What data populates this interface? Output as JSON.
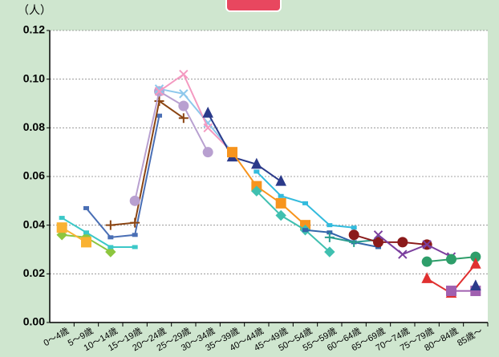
{
  "chart_data": {
    "type": "line",
    "y_label": "（人）",
    "categories": [
      "0～4歳",
      "5～9歳",
      "10～14歳",
      "15～19歳",
      "20～24歳",
      "25～29歳",
      "30～34歳",
      "35～39歳",
      "40～44歳",
      "45～49歳",
      "50～54歳",
      "55～59歳",
      "60～64歳",
      "65～69歳",
      "70～74歳",
      "75～79歳",
      "80～84歳",
      "85歳～"
    ],
    "ylim": [
      0,
      0.12
    ],
    "yticks": [
      {
        "value": 0,
        "label": "0.00"
      },
      {
        "value": 0.02,
        "label": "0.02"
      },
      {
        "value": 0.04,
        "label": "0.04"
      },
      {
        "value": 0.06,
        "label": "0.06"
      },
      {
        "value": 0.08,
        "label": "0.08"
      },
      {
        "value": 0.1,
        "label": "0.10"
      },
      {
        "value": 0.12,
        "label": "0.12"
      }
    ],
    "grid": true,
    "series": [
      {
        "color": "#8dc63f",
        "marker": "diamond",
        "values": [
          0.036,
          0.035,
          0.029,
          null,
          null,
          null,
          null,
          null,
          null,
          null,
          null,
          null,
          null,
          null,
          null,
          null,
          null,
          null
        ]
      },
      {
        "color": "#f9b233",
        "marker": "square",
        "values": [
          0.039,
          0.033,
          null,
          null,
          null,
          null,
          null,
          null,
          null,
          null,
          null,
          null,
          null,
          null,
          null,
          null,
          null,
          null
        ]
      },
      {
        "color": "#3cc8c8",
        "marker": "dash",
        "values": [
          0.043,
          0.037,
          0.031,
          0.031,
          null,
          null,
          null,
          null,
          null,
          null,
          null,
          null,
          null,
          null,
          null,
          null,
          null,
          null
        ]
      },
      {
        "color": "#4a6fb5",
        "marker": "dash",
        "values": [
          null,
          0.047,
          0.035,
          0.036,
          0.085,
          null,
          null,
          null,
          null,
          null,
          null,
          null,
          null,
          null,
          null,
          null,
          null,
          null
        ]
      },
      {
        "color": "#8b4513",
        "marker": "plus",
        "values": [
          null,
          null,
          0.04,
          0.041,
          0.091,
          0.084,
          null,
          null,
          null,
          null,
          null,
          null,
          null,
          null,
          null,
          null,
          null,
          null
        ]
      },
      {
        "color": "#b8a0d0",
        "marker": "circle",
        "values": [
          null,
          null,
          null,
          0.05,
          0.095,
          0.089,
          0.07,
          null,
          null,
          null,
          null,
          null,
          null,
          null,
          null,
          null,
          null,
          null
        ]
      },
      {
        "color": "#8ec8ec",
        "marker": "x",
        "values": [
          null,
          null,
          null,
          null,
          0.096,
          0.094,
          0.082,
          0.07,
          null,
          null,
          null,
          null,
          null,
          null,
          null,
          null,
          null,
          null
        ]
      },
      {
        "color": "#f49ac1",
        "marker": "x",
        "values": [
          null,
          null,
          null,
          null,
          0.095,
          0.102,
          0.08,
          0.07,
          null,
          null,
          null,
          null,
          null,
          null,
          null,
          null,
          null,
          null
        ]
      },
      {
        "color": "#2b3a8a",
        "marker": "triangle",
        "values": [
          null,
          null,
          null,
          null,
          null,
          null,
          0.086,
          0.068,
          0.065,
          0.058,
          null,
          null,
          null,
          null,
          null,
          null,
          null,
          null
        ]
      },
      {
        "color": "#f7941d",
        "marker": "square",
        "values": [
          null,
          null,
          null,
          null,
          null,
          null,
          null,
          0.07,
          0.056,
          0.049,
          0.04,
          null,
          null,
          null,
          null,
          null,
          null,
          null
        ]
      },
      {
        "color": "#33bbdd",
        "marker": "dash",
        "values": [
          null,
          null,
          null,
          null,
          null,
          null,
          null,
          null,
          0.062,
          0.052,
          0.049,
          0.04,
          0.039,
          null,
          null,
          null,
          null,
          null
        ]
      },
      {
        "color": "#40c0b0",
        "marker": "diamond",
        "values": [
          null,
          null,
          null,
          null,
          null,
          null,
          null,
          null,
          0.054,
          0.044,
          0.038,
          0.029,
          null,
          null,
          null,
          null,
          null,
          null
        ]
      },
      {
        "color": "#3366aa",
        "marker": "dash",
        "values": [
          null,
          null,
          null,
          null,
          null,
          null,
          null,
          null,
          null,
          null,
          0.038,
          0.037,
          0.033,
          0.031,
          null,
          null,
          null,
          null
        ]
      },
      {
        "color": "#2a9d8f",
        "marker": "plus",
        "values": [
          null,
          null,
          null,
          null,
          null,
          null,
          null,
          null,
          null,
          null,
          null,
          0.035,
          0.033,
          0.034,
          null,
          null,
          null,
          null
        ]
      },
      {
        "color": "#8b1a1a",
        "marker": "circle",
        "values": [
          null,
          null,
          null,
          null,
          null,
          null,
          null,
          null,
          null,
          null,
          null,
          null,
          0.036,
          0.033,
          0.033,
          0.032,
          null,
          null
        ]
      },
      {
        "color": "#7b3f9e",
        "marker": "x",
        "values": [
          null,
          null,
          null,
          null,
          null,
          null,
          null,
          null,
          null,
          null,
          null,
          null,
          null,
          0.036,
          0.028,
          0.032,
          0.027,
          null
        ]
      },
      {
        "color": "#2e9e6a",
        "marker": "circle",
        "values": [
          null,
          null,
          null,
          null,
          null,
          null,
          null,
          null,
          null,
          null,
          null,
          null,
          null,
          null,
          null,
          0.025,
          0.026,
          0.027
        ]
      },
      {
        "color": "#e03030",
        "marker": "triangle",
        "values": [
          null,
          null,
          null,
          null,
          null,
          null,
          null,
          null,
          null,
          null,
          null,
          null,
          null,
          null,
          null,
          0.018,
          0.012,
          0.024
        ]
      },
      {
        "color": "#a060b0",
        "marker": "square",
        "values": [
          null,
          null,
          null,
          null,
          null,
          null,
          null,
          null,
          null,
          null,
          null,
          null,
          null,
          null,
          null,
          null,
          0.013,
          0.013
        ]
      },
      {
        "color": "#2b3a8a",
        "marker": "triangle",
        "values": [
          null,
          null,
          null,
          null,
          null,
          null,
          null,
          null,
          null,
          null,
          null,
          null,
          null,
          null,
          null,
          null,
          null,
          0.015
        ]
      }
    ]
  }
}
